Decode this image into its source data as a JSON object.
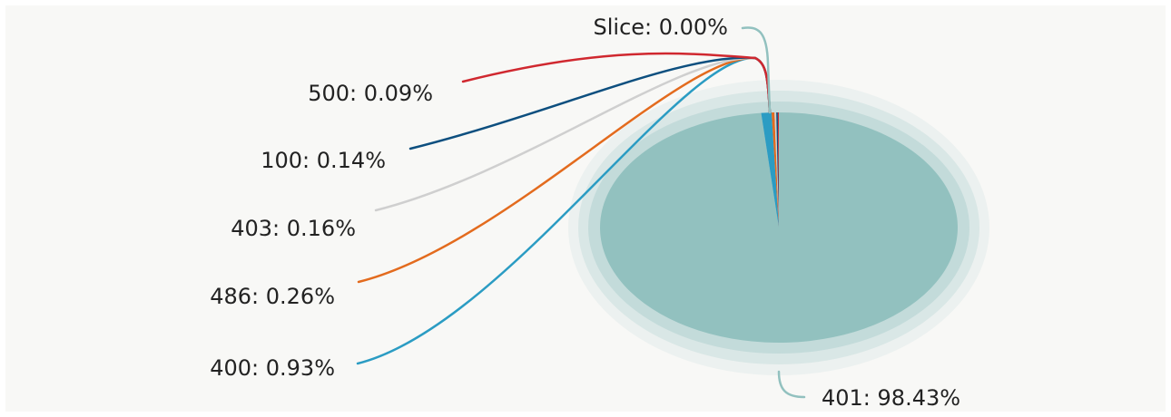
{
  "chart_data": {
    "type": "pie",
    "title": "",
    "background": "#f8f8f6",
    "slices": [
      {
        "label": "401",
        "value": 98.43,
        "display": "401: 98.43%",
        "color": "#92c1bf"
      },
      {
        "label": "400",
        "value": 0.93,
        "display": "400: 0.93%",
        "color": "#2b9cc3"
      },
      {
        "label": "486",
        "value": 0.26,
        "display": "486: 0.26%",
        "color": "#e36b1e"
      },
      {
        "label": "403",
        "value": 0.16,
        "display": "403: 0.16%",
        "color": "#cfcfcf"
      },
      {
        "label": "100",
        "value": 0.14,
        "display": "100: 0.14%",
        "color": "#0d4f7f"
      },
      {
        "label": "500",
        "value": 0.09,
        "display": "500: 0.09%",
        "color": "#d0282f"
      },
      {
        "label": "Slice",
        "value": 0.0,
        "display": "Slice: 0.00%",
        "color": "#92c1bf"
      }
    ]
  }
}
